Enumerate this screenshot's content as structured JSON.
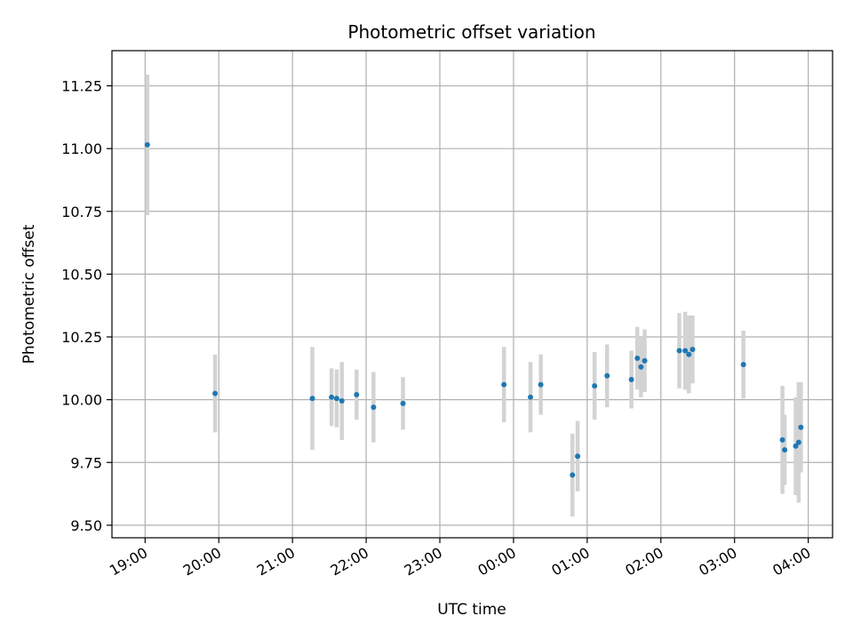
{
  "chart_data": {
    "type": "scatter",
    "title": "Photometric offset variation",
    "xlabel": "UTC time",
    "ylabel": "Photometric offset",
    "x_unit": "hours since 19:00 UTC",
    "xlim": [
      -0.45,
      9.33
    ],
    "ylim": [
      9.45,
      11.39
    ],
    "grid": true,
    "x_ticks": [
      {
        "value": 0,
        "label": "19:00"
      },
      {
        "value": 1,
        "label": "20:00"
      },
      {
        "value": 2,
        "label": "21:00"
      },
      {
        "value": 3,
        "label": "22:00"
      },
      {
        "value": 4,
        "label": "23:00"
      },
      {
        "value": 5,
        "label": "00:00"
      },
      {
        "value": 6,
        "label": "01:00"
      },
      {
        "value": 7,
        "label": "02:00"
      },
      {
        "value": 8,
        "label": "03:00"
      },
      {
        "value": 9,
        "label": "04:00"
      }
    ],
    "y_ticks": [
      {
        "value": 9.5,
        "label": "9.50"
      },
      {
        "value": 9.75,
        "label": "9.75"
      },
      {
        "value": 10.0,
        "label": "10.00"
      },
      {
        "value": 10.25,
        "label": "10.25"
      },
      {
        "value": 10.5,
        "label": "10.50"
      },
      {
        "value": 10.75,
        "label": "10.75"
      },
      {
        "value": 11.0,
        "label": "11.00"
      },
      {
        "value": 11.25,
        "label": "11.25"
      }
    ],
    "colors": {
      "point": "#1f77b4",
      "errorbar": "#d3d3d3",
      "grid": "#b0b0b0"
    },
    "points": [
      {
        "x": 0.03,
        "y": 11.015,
        "err": 0.28
      },
      {
        "x": 0.95,
        "y": 10.025,
        "err": 0.155
      },
      {
        "x": 2.27,
        "y": 10.005,
        "err": 0.205
      },
      {
        "x": 2.53,
        "y": 10.01,
        "err": 0.115
      },
      {
        "x": 2.6,
        "y": 10.005,
        "err": 0.115
      },
      {
        "x": 2.67,
        "y": 9.995,
        "err": 0.155
      },
      {
        "x": 2.87,
        "y": 10.02,
        "err": 0.1
      },
      {
        "x": 3.1,
        "y": 9.97,
        "err": 0.14
      },
      {
        "x": 3.5,
        "y": 9.985,
        "err": 0.105
      },
      {
        "x": 4.87,
        "y": 10.06,
        "err": 0.15
      },
      {
        "x": 5.23,
        "y": 10.01,
        "err": 0.14
      },
      {
        "x": 5.37,
        "y": 10.06,
        "err": 0.12
      },
      {
        "x": 5.8,
        "y": 9.7,
        "err": 0.165
      },
      {
        "x": 5.87,
        "y": 9.775,
        "err": 0.14
      },
      {
        "x": 6.1,
        "y": 10.055,
        "err": 0.135
      },
      {
        "x": 6.27,
        "y": 10.095,
        "err": 0.125
      },
      {
        "x": 6.6,
        "y": 10.08,
        "err": 0.115
      },
      {
        "x": 6.68,
        "y": 10.165,
        "err": 0.125
      },
      {
        "x": 6.73,
        "y": 10.13,
        "err": 0.12
      },
      {
        "x": 6.78,
        "y": 10.155,
        "err": 0.125
      },
      {
        "x": 7.25,
        "y": 10.195,
        "err": 0.15
      },
      {
        "x": 7.33,
        "y": 10.195,
        "err": 0.155
      },
      {
        "x": 7.38,
        "y": 10.18,
        "err": 0.155
      },
      {
        "x": 7.43,
        "y": 10.2,
        "err": 0.135
      },
      {
        "x": 8.12,
        "y": 10.14,
        "err": 0.135
      },
      {
        "x": 8.65,
        "y": 9.84,
        "err": 0.215
      },
      {
        "x": 8.68,
        "y": 9.8,
        "err": 0.14
      },
      {
        "x": 8.83,
        "y": 9.815,
        "err": 0.195
      },
      {
        "x": 8.87,
        "y": 9.83,
        "err": 0.24
      },
      {
        "x": 8.9,
        "y": 9.89,
        "err": 0.18
      }
    ]
  }
}
